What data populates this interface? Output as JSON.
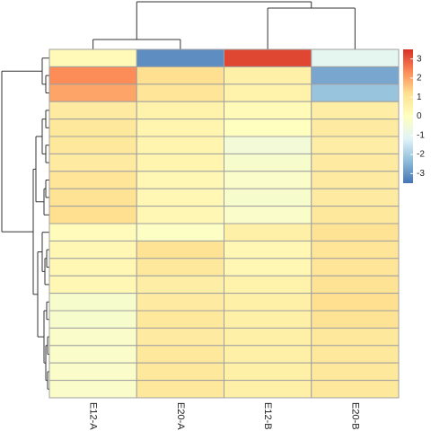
{
  "chart_data": {
    "type": "heatmap",
    "title": "",
    "xlabel": "",
    "ylabel": "",
    "columns": [
      "E12-A",
      "E20-A",
      "E12-B",
      "E20-B"
    ],
    "row_count": 20,
    "values": [
      [
        0.2,
        -3.1,
        3.2,
        -1.0
      ],
      [
        2.3,
        1.2,
        0.6,
        -2.7
      ],
      [
        2.0,
        1.0,
        0.5,
        -2.2
      ],
      [
        0.8,
        0.5,
        0.2,
        0.7
      ],
      [
        0.9,
        0.4,
        0.0,
        0.8
      ],
      [
        0.9,
        0.4,
        -0.5,
        0.7
      ],
      [
        0.8,
        0.4,
        -0.3,
        0.8
      ],
      [
        1.0,
        0.3,
        -0.2,
        0.8
      ],
      [
        1.1,
        0.3,
        -0.3,
        0.8
      ],
      [
        1.2,
        0.3,
        -0.2,
        0.9
      ],
      [
        0.1,
        -0.1,
        0.6,
        1.1
      ],
      [
        0.3,
        1.1,
        0.3,
        1.0
      ],
      [
        0.3,
        0.9,
        0.3,
        1.0
      ],
      [
        0.3,
        0.7,
        0.5,
        1.1
      ],
      [
        -0.3,
        0.8,
        0.6,
        1.2
      ],
      [
        -0.3,
        0.9,
        0.6,
        1.1
      ],
      [
        -0.2,
        0.8,
        0.6,
        0.9
      ],
      [
        -0.2,
        0.9,
        0.6,
        0.9
      ],
      [
        -0.2,
        0.9,
        0.6,
        0.9
      ],
      [
        -0.2,
        0.9,
        0.6,
        0.9
      ]
    ],
    "color_scale": {
      "min": -3.5,
      "max": 3.5,
      "ticks": [
        3,
        2,
        1,
        0,
        -1,
        -2,
        -3
      ],
      "stops": [
        {
          "value": -3.5,
          "color": "#4575b4"
        },
        {
          "value": -2.3,
          "color": "#91bfdb"
        },
        {
          "value": -1.2,
          "color": "#e0f3f8"
        },
        {
          "value": 0.0,
          "color": "#ffffbf"
        },
        {
          "value": 1.2,
          "color": "#fee090"
        },
        {
          "value": 2.3,
          "color": "#fc8d59"
        },
        {
          "value": 3.5,
          "color": "#d73027"
        }
      ]
    },
    "grid_color": "#a0a0a0",
    "dendrogram_color": "#333333",
    "row_dendrogram": true,
    "column_dendrogram": true,
    "legend_position": "right"
  }
}
